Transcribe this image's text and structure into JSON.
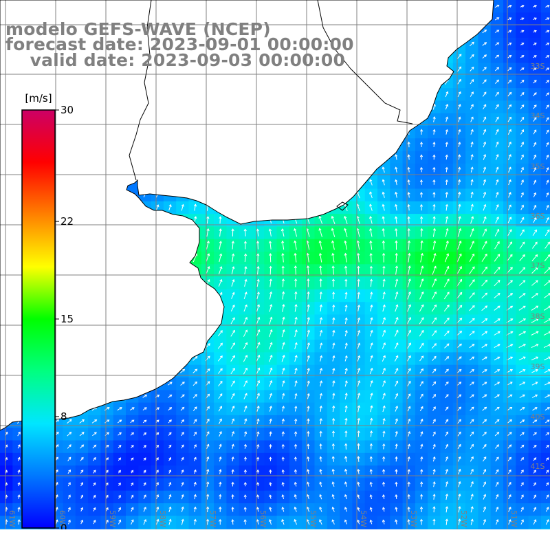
{
  "titles": {
    "line1": "modelo GEFS-WAVE (NCEP)",
    "line2": "forecast date: 2023-09-01 00:00:00",
    "line3": "    valid date: 2023-09-03 00:00:00"
  },
  "colorbar": {
    "unit_label": "[m/s]",
    "ticks": [
      "30",
      "22",
      "15",
      "8",
      "0"
    ],
    "min": 0,
    "max": 30,
    "stops": [
      "#0000ff",
      "#0078ff",
      "#00e6ff",
      "#00ff80",
      "#00ff00",
      "#ffff00",
      "#ff8000",
      "#ff0000",
      "#cc0066"
    ]
  },
  "lat_labels": [
    "33S",
    "34S",
    "35S",
    "36S",
    "37S",
    "38S",
    "39S",
    "40S",
    "41S"
  ],
  "lon_labels": [
    "61W",
    "60W",
    "59W",
    "58W",
    "57W",
    "56W",
    "55W",
    "54W",
    "53W",
    "52W",
    "51W"
  ],
  "colors": {
    "land": "#ffffff",
    "grid": "#808080",
    "coast": "#000000",
    "arrows": "#ffffff",
    "title": "#808080"
  }
}
